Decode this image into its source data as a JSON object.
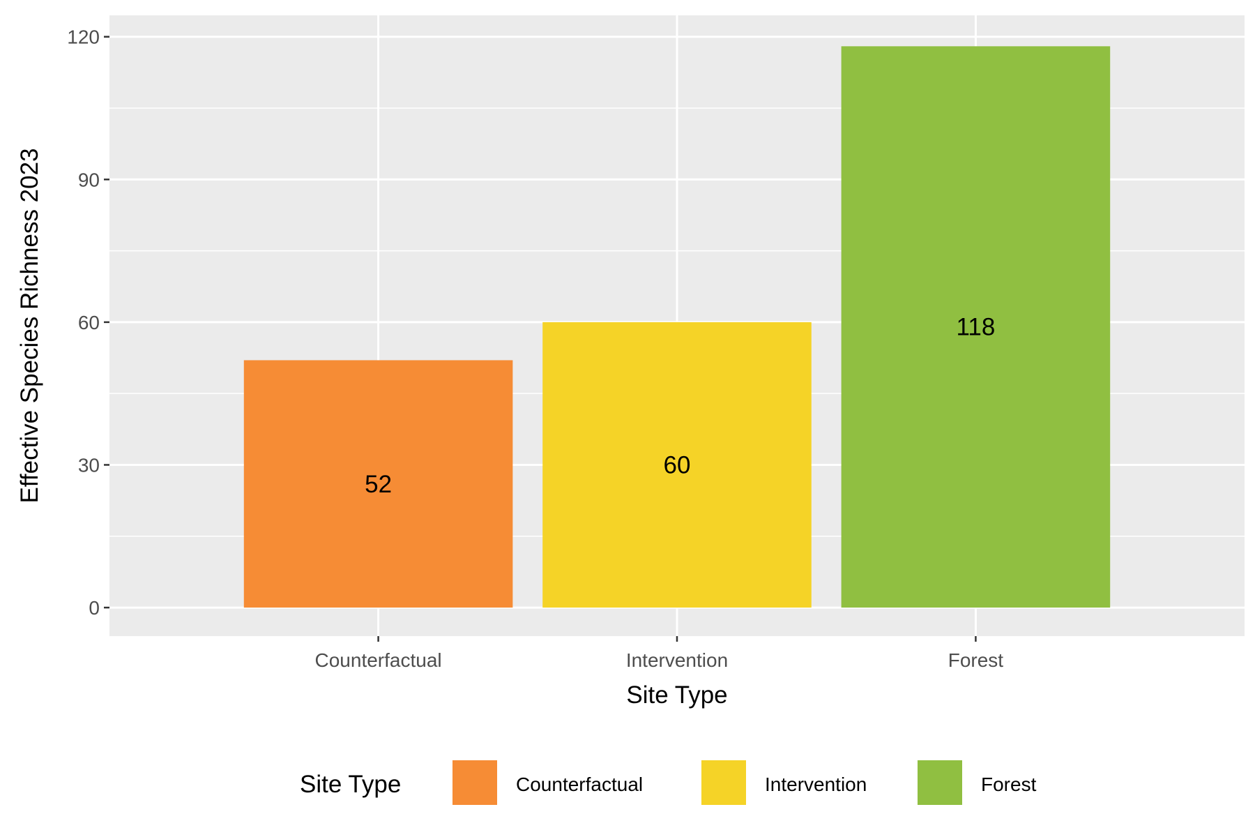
{
  "chart_data": {
    "type": "bar",
    "categories": [
      "Counterfactual",
      "Intervention",
      "Forest"
    ],
    "values": [
      52,
      60,
      118
    ],
    "value_labels": [
      "52",
      "60",
      "118"
    ],
    "colors": [
      "#F68C35",
      "#F5D327",
      "#90BF41"
    ],
    "xlabel": "Site Type",
    "ylabel": "Effective Species Richness 2023",
    "ylim": [
      -6,
      124.5
    ],
    "yticks": [
      0,
      30,
      60,
      90,
      120
    ],
    "ytick_labels": [
      "0",
      "30",
      "60",
      "90",
      "120"
    ],
    "grid": true,
    "panel_background": "#EBEBEB",
    "legend": {
      "title": "Site Type",
      "position": "bottom",
      "entries": [
        "Counterfactual",
        "Intervention",
        "Forest"
      ]
    }
  }
}
